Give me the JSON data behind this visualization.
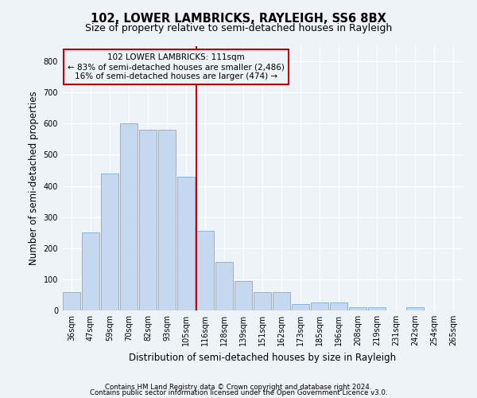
{
  "title": "102, LOWER LAMBRICKS, RAYLEIGH, SS6 8BX",
  "subtitle": "Size of property relative to semi-detached houses in Rayleigh",
  "xlabel": "Distribution of semi-detached houses by size in Rayleigh",
  "ylabel": "Number of semi-detached properties",
  "footnote1": "Contains HM Land Registry data © Crown copyright and database right 2024.",
  "footnote2": "Contains public sector information licensed under the Open Government Licence v3.0.",
  "categories": [
    "36sqm",
    "47sqm",
    "59sqm",
    "70sqm",
    "82sqm",
    "93sqm",
    "105sqm",
    "116sqm",
    "128sqm",
    "139sqm",
    "151sqm",
    "162sqm",
    "173sqm",
    "185sqm",
    "196sqm",
    "208sqm",
    "219sqm",
    "231sqm",
    "242sqm",
    "254sqm",
    "265sqm"
  ],
  "values": [
    60,
    250,
    440,
    600,
    580,
    580,
    430,
    255,
    155,
    95,
    60,
    60,
    20,
    25,
    25,
    10,
    10,
    0,
    10,
    0,
    0
  ],
  "bar_color": "#c5d8f0",
  "bar_edge_color": "#7aadd4",
  "highlight_line_label": "102 LOWER LAMBRICKS: 111sqm",
  "annotation_line1": "← 83% of semi-detached houses are smaller (2,486)",
  "annotation_line2": "16% of semi-detached houses are larger (474) →",
  "annotation_box_color": "#cc0000",
  "ylim": [
    0,
    850
  ],
  "yticks": [
    0,
    100,
    200,
    300,
    400,
    500,
    600,
    700,
    800
  ],
  "bg_color": "#eef3f8",
  "grid_color": "#ffffff",
  "title_fontsize": 10.5,
  "subtitle_fontsize": 9,
  "axis_label_fontsize": 8.5,
  "tick_fontsize": 7,
  "footnote_fontsize": 6.2
}
